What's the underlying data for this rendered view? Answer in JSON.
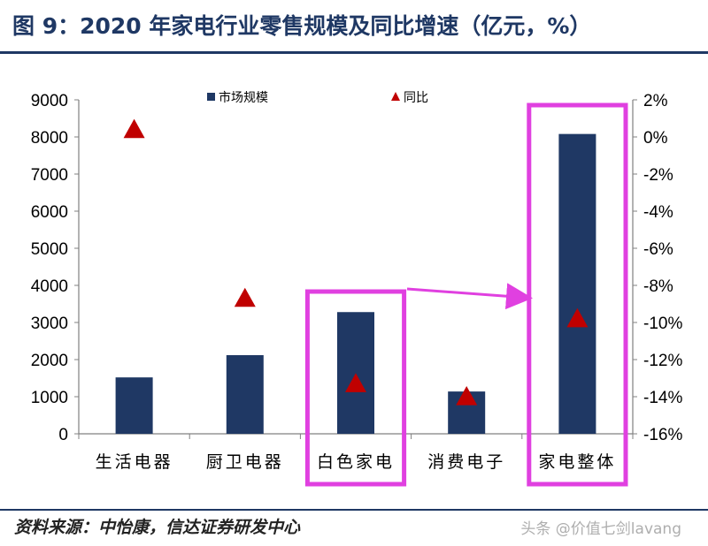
{
  "header": {
    "title": "图 9：2020 年家电行业零售规模及同比增速（亿元，%）"
  },
  "footer": {
    "source": "资料来源：中怡康，信达证券研发中心",
    "watermark": "头条 @价值七剑lavang"
  },
  "colors": {
    "bar": "#1f3864",
    "marker": "#c00000",
    "highlight": "#e040e0",
    "title": "#1f3864"
  },
  "chart_data": {
    "type": "bar",
    "categories": [
      "生活电器",
      "厨卫电器",
      "白色家电",
      "消费电子",
      "家电整体"
    ],
    "series": [
      {
        "name": "市场规模",
        "type": "bar",
        "axis": "left",
        "values": [
          1520,
          2120,
          3280,
          1140,
          8080
        ]
      },
      {
        "name": "同比",
        "type": "scatter",
        "marker": "triangle",
        "axis": "right",
        "values": [
          0.4,
          -8.7,
          -13.3,
          -14.0,
          -9.8
        ]
      }
    ],
    "y_left": {
      "min": 0,
      "max": 9000,
      "step": 1000,
      "ticks": [
        "0",
        "1000",
        "2000",
        "3000",
        "4000",
        "5000",
        "6000",
        "7000",
        "8000",
        "9000"
      ]
    },
    "y_right": {
      "min": -16,
      "max": 2,
      "step": 2,
      "ticks": [
        "-16%",
        "-14%",
        "-12%",
        "-10%",
        "-8%",
        "-6%",
        "-4%",
        "-2%",
        "0%",
        "2%"
      ]
    },
    "legend": {
      "position": "top",
      "items": [
        "市场规模",
        "同比"
      ]
    },
    "highlighted": [
      "白色家电",
      "家电整体"
    ],
    "annotation": "arrow from 白色家电 to 家电整体"
  }
}
